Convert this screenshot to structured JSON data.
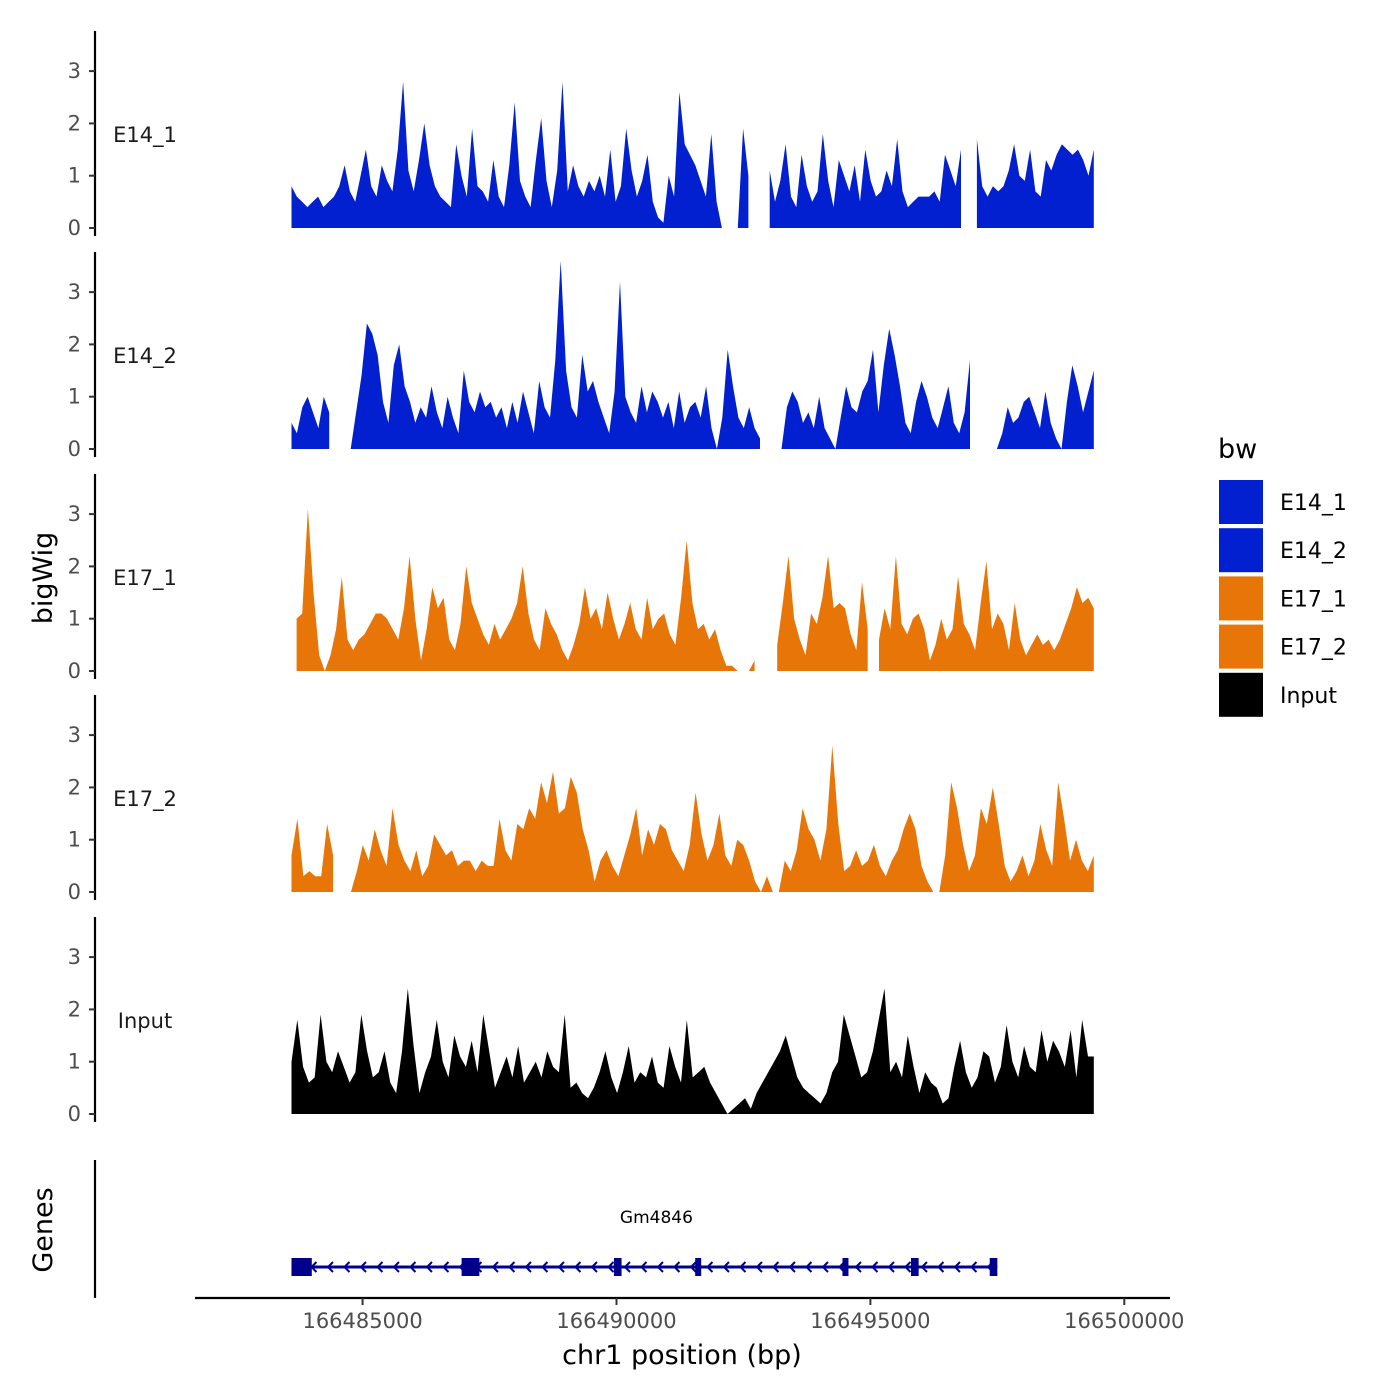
{
  "chart_data": {
    "type": "area",
    "title": "",
    "xlabel": "chr1 position (bp)",
    "ylabel": "bigWig",
    "genes_label": "Genes",
    "xlim": [
      166481700,
      166500900
    ],
    "x_ticks": [
      166485000,
      166490000,
      166495000,
      166500000
    ],
    "x_tick_labels": [
      "166485000",
      "166490000",
      "166495000",
      "166500000"
    ],
    "ylim": [
      0,
      3.7
    ],
    "y_ticks": [
      0,
      1,
      2,
      3
    ],
    "y_tick_labels": [
      "0",
      "1",
      "2",
      "3"
    ],
    "legend": {
      "title": "bw",
      "position": "right",
      "entries": [
        {
          "label": "E14_1",
          "color": "#0220cf"
        },
        {
          "label": "E14_2",
          "color": "#0220cf"
        },
        {
          "label": "E17_1",
          "color": "#e87508"
        },
        {
          "label": "E17_2",
          "color": "#e87508"
        },
        {
          "label": "Input",
          "color": "#000000"
        }
      ]
    },
    "tracks": [
      {
        "name": "E14_1",
        "color": "#0220cf",
        "start": 166483600,
        "end": 166499400,
        "gaps": [
          [
            166492600,
            166493000
          ],
          [
            166496800,
            166497000
          ]
        ],
        "values": [
          0.8,
          0.6,
          0.5,
          0.4,
          0.5,
          0.6,
          0.4,
          0.5,
          0.6,
          0.8,
          1.2,
          0.7,
          0.5,
          1.0,
          1.5,
          0.8,
          0.6,
          1.2,
          0.9,
          0.7,
          1.5,
          2.8,
          1.1,
          0.7,
          1.3,
          2.0,
          1.2,
          0.8,
          0.6,
          0.5,
          0.4,
          1.6,
          1.0,
          0.6,
          1.9,
          0.8,
          0.7,
          0.5,
          1.3,
          0.6,
          0.4,
          1.2,
          2.4,
          0.9,
          0.6,
          0.4,
          1.3,
          2.1,
          0.9,
          0.4,
          1.1,
          2.8,
          0.7,
          1.2,
          0.8,
          0.6,
          0.9,
          0.7,
          1.0,
          0.6,
          1.5,
          0.5,
          0.8,
          1.9,
          1.1,
          0.6,
          0.9,
          1.4,
          0.5,
          0.2,
          0.1,
          1.0,
          0.6,
          2.6,
          1.6,
          1.4,
          1.2,
          0.9,
          0.6,
          1.8,
          0.5,
          0.0,
          0.0,
          0.0,
          0.0,
          1.9,
          1.0,
          0.5,
          0.4,
          0.7,
          1.1,
          0.5,
          0.9,
          1.6,
          0.6,
          0.4,
          1.4,
          0.8,
          0.5,
          0.7,
          1.8,
          0.9,
          0.4,
          1.3,
          1.0,
          0.7,
          1.2,
          0.5,
          1.5,
          0.9,
          0.6,
          0.7,
          1.1,
          0.8,
          1.7,
          0.7,
          0.4,
          0.5,
          0.6,
          0.6,
          0.6,
          0.7,
          0.5,
          1.4,
          1.1,
          0.8,
          1.5,
          0.4,
          1.0,
          1.7,
          0.8,
          0.6,
          0.8,
          0.7,
          0.8,
          1.1,
          1.6,
          1.0,
          0.9,
          1.5,
          0.7,
          0.6,
          1.3,
          1.1,
          1.4,
          1.6,
          1.5,
          1.4,
          1.5,
          1.3,
          1.0,
          1.5
        ]
      },
      {
        "name": "E14_2",
        "color": "#0220cf",
        "start": 166483600,
        "end": 166499400,
        "gaps": [
          [
            166484400,
            166484700
          ],
          [
            166492900,
            166493200
          ],
          [
            166497000,
            166497200
          ]
        ],
        "values": [
          0.5,
          0.3,
          0.8,
          1.0,
          0.7,
          0.4,
          1.0,
          0.7,
          0.3,
          0.0,
          0.0,
          0.0,
          0.7,
          1.4,
          2.4,
          2.2,
          1.8,
          0.9,
          0.5,
          1.6,
          2.0,
          1.2,
          0.9,
          0.5,
          0.8,
          0.6,
          1.2,
          0.7,
          0.4,
          1.0,
          0.6,
          0.3,
          1.5,
          0.9,
          0.7,
          1.1,
          0.8,
          0.9,
          0.6,
          0.8,
          0.4,
          0.9,
          0.5,
          1.1,
          0.7,
          0.3,
          1.3,
          0.8,
          0.6,
          1.7,
          3.6,
          1.5,
          0.8,
          0.6,
          1.8,
          1.1,
          1.3,
          0.9,
          0.6,
          0.3,
          1.1,
          3.2,
          1.0,
          0.7,
          0.5,
          1.2,
          0.7,
          1.1,
          0.9,
          0.6,
          0.9,
          0.4,
          1.1,
          0.5,
          0.8,
          0.9,
          0.6,
          1.2,
          0.4,
          0.0,
          0.6,
          1.9,
          1.2,
          0.6,
          0.4,
          0.8,
          0.4,
          0.2,
          0.1,
          0.0,
          0.0,
          0.0,
          0.8,
          1.1,
          0.9,
          0.5,
          0.7,
          0.4,
          1.0,
          0.4,
          0.2,
          0.0,
          0.6,
          1.2,
          0.8,
          0.7,
          1.1,
          1.3,
          1.9,
          0.7,
          1.6,
          2.3,
          1.8,
          1.2,
          0.5,
          0.3,
          0.9,
          1.3,
          1.0,
          0.6,
          0.4,
          0.8,
          1.2,
          0.5,
          0.3,
          0.7,
          1.7,
          1.0,
          0.4,
          0.0,
          0.0,
          0.0,
          0.3,
          0.8,
          0.5,
          0.6,
          0.9,
          1.0,
          0.7,
          0.4,
          1.1,
          0.5,
          0.2,
          0.0,
          0.9,
          1.6,
          1.2,
          0.7,
          1.1,
          1.5
        ]
      },
      {
        "name": "E17_1",
        "color": "#e87508",
        "start": 166483700,
        "end": 166499400,
        "gaps": [
          [
            166492800,
            166493100
          ],
          [
            166495000,
            166495100
          ]
        ],
        "values": [
          1.0,
          1.1,
          3.1,
          1.5,
          0.3,
          0.0,
          0.3,
          0.8,
          1.8,
          0.6,
          0.4,
          0.6,
          0.7,
          0.9,
          1.1,
          1.1,
          1.0,
          0.8,
          0.6,
          1.2,
          2.2,
          1.0,
          0.2,
          0.8,
          1.6,
          1.2,
          1.4,
          0.6,
          0.4,
          0.9,
          2.0,
          1.3,
          1.0,
          0.7,
          0.5,
          0.9,
          0.6,
          0.8,
          1.0,
          1.3,
          2.0,
          1.1,
          0.6,
          0.4,
          1.2,
          0.9,
          0.7,
          0.4,
          0.2,
          0.5,
          0.9,
          1.6,
          1.0,
          1.2,
          0.8,
          1.5,
          1.0,
          0.6,
          0.9,
          1.3,
          0.8,
          0.6,
          1.4,
          0.8,
          1.0,
          1.1,
          0.7,
          0.5,
          1.4,
          2.5,
          1.3,
          0.8,
          0.9,
          0.6,
          0.8,
          0.4,
          0.1,
          0.1,
          0.0,
          0.0,
          0.0,
          0.2,
          0.7,
          1.6,
          1.0,
          0.5,
          1.3,
          2.2,
          1.0,
          0.6,
          0.3,
          1.1,
          0.9,
          1.4,
          2.2,
          1.2,
          1.3,
          1.2,
          0.7,
          0.4,
          1.7,
          0.8,
          0.3,
          0.6,
          1.2,
          0.8,
          2.2,
          0.9,
          0.7,
          1.0,
          1.1,
          0.8,
          0.2,
          0.5,
          1.0,
          0.6,
          0.8,
          1.8,
          0.9,
          0.7,
          0.4,
          1.3,
          2.1,
          0.8,
          1.1,
          0.9,
          0.4,
          1.3,
          0.6,
          0.3,
          0.5,
          0.7,
          0.5,
          0.6,
          0.4,
          0.6,
          0.9,
          1.2,
          1.6,
          1.3,
          1.4,
          1.2
        ]
      },
      {
        "name": "E17_2",
        "color": "#e87508",
        "start": 166483600,
        "end": 166499400,
        "gaps": [
          [
            166484500,
            166484700
          ],
          [
            166496600,
            166496700
          ]
        ],
        "values": [
          0.7,
          1.4,
          0.3,
          0.4,
          0.3,
          0.3,
          1.3,
          0.7,
          0.0,
          0.0,
          0.0,
          0.4,
          0.9,
          0.6,
          1.2,
          0.8,
          0.5,
          1.6,
          0.9,
          0.6,
          0.4,
          0.8,
          0.3,
          0.5,
          1.1,
          0.9,
          0.7,
          0.8,
          0.5,
          0.6,
          0.6,
          0.4,
          0.6,
          0.5,
          0.5,
          1.4,
          0.8,
          0.6,
          1.3,
          1.2,
          1.6,
          1.4,
          2.1,
          1.7,
          2.3,
          1.5,
          1.6,
          2.2,
          1.9,
          1.2,
          0.8,
          0.2,
          0.6,
          0.8,
          0.5,
          0.3,
          0.7,
          1.1,
          1.6,
          0.7,
          1.2,
          0.9,
          1.3,
          1.2,
          0.8,
          0.6,
          0.4,
          0.9,
          1.9,
          1.1,
          0.6,
          0.9,
          1.5,
          0.7,
          0.5,
          1.0,
          0.9,
          0.6,
          0.2,
          0.0,
          0.3,
          0.0,
          0.0,
          0.6,
          0.4,
          0.8,
          1.6,
          1.2,
          1.0,
          0.6,
          1.2,
          2.8,
          1.3,
          0.4,
          0.5,
          0.8,
          0.5,
          0.6,
          0.9,
          0.5,
          0.3,
          0.6,
          0.8,
          1.2,
          1.5,
          1.2,
          0.5,
          0.2,
          0.0,
          0.0,
          0.7,
          2.1,
          1.6,
          0.9,
          0.4,
          0.7,
          1.6,
          1.3,
          2.0,
          1.3,
          0.5,
          0.2,
          0.4,
          0.7,
          0.3,
          0.6,
          1.3,
          0.8,
          0.5,
          2.1,
          1.4,
          0.6,
          1.0,
          0.6,
          0.4,
          0.7
        ]
      },
      {
        "name": "Input",
        "color": "#000000",
        "start": 166483600,
        "end": 166499400,
        "gaps": [],
        "values": [
          1.0,
          1.8,
          0.9,
          0.6,
          0.7,
          1.9,
          1.0,
          0.8,
          1.2,
          0.9,
          0.6,
          0.8,
          1.9,
          1.2,
          0.7,
          0.8,
          1.2,
          0.6,
          0.4,
          1.2,
          2.4,
          1.3,
          0.4,
          0.8,
          1.1,
          1.8,
          1.0,
          0.7,
          1.5,
          1.1,
          0.9,
          1.4,
          0.8,
          1.9,
          1.2,
          0.5,
          0.8,
          1.1,
          0.7,
          1.3,
          0.6,
          0.8,
          1.0,
          0.7,
          1.2,
          0.9,
          0.8,
          1.9,
          0.5,
          0.6,
          0.4,
          0.3,
          0.5,
          0.8,
          1.2,
          0.7,
          0.4,
          0.8,
          1.3,
          0.6,
          0.8,
          0.7,
          1.1,
          0.6,
          0.5,
          1.3,
          0.9,
          0.6,
          1.8,
          0.7,
          0.8,
          0.9,
          0.6,
          0.4,
          0.2,
          0.0,
          0.1,
          0.2,
          0.3,
          0.1,
          0.4,
          0.6,
          0.8,
          1.0,
          1.2,
          1.5,
          1.1,
          0.7,
          0.5,
          0.4,
          0.3,
          0.2,
          0.4,
          0.8,
          1.0,
          1.9,
          1.5,
          1.1,
          0.7,
          0.8,
          1.2,
          1.8,
          2.4,
          0.8,
          1.0,
          0.7,
          1.5,
          0.9,
          0.4,
          0.8,
          0.6,
          0.5,
          0.2,
          0.3,
          0.9,
          1.4,
          0.8,
          0.5,
          0.7,
          1.2,
          1.1,
          0.6,
          0.9,
          1.7,
          1.0,
          0.7,
          1.3,
          0.9,
          0.8,
          1.6,
          1.0,
          1.4,
          1.2,
          0.9,
          1.6,
          0.7,
          1.8,
          1.1,
          1.1
        ]
      }
    ],
    "genes": [
      {
        "name": "Gm4846",
        "start": 166483600,
        "end": 166497500,
        "strand": "-",
        "exons": [
          [
            166483600,
            166484000
          ],
          [
            166486950,
            166487300
          ],
          [
            166489950,
            166490100
          ],
          [
            166491550,
            166491650
          ],
          [
            166494450,
            166494550
          ],
          [
            166495800,
            166495950
          ],
          [
            166497350,
            166497500
          ]
        ]
      }
    ]
  }
}
